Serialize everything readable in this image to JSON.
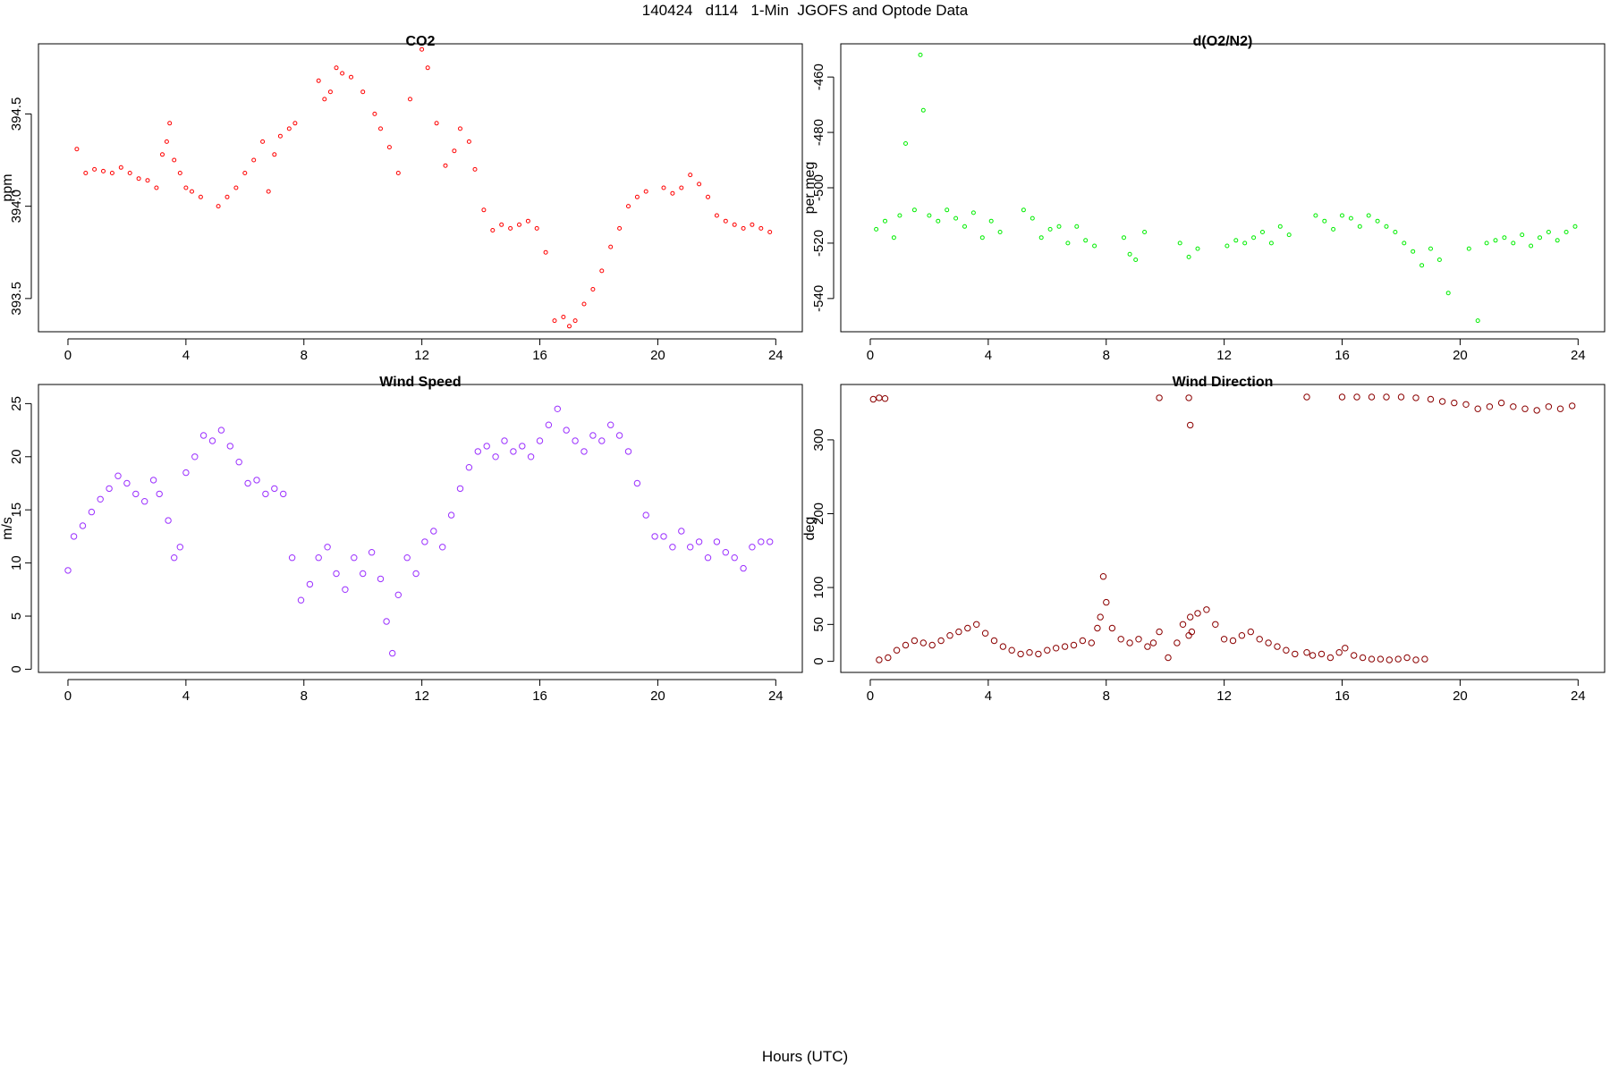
{
  "figure": {
    "title": "140424   d114   1-Min  JGOFS and Optode Data",
    "xlabel": "Hours (UTC)"
  },
  "chart_data": [
    {
      "type": "scatter",
      "title": "CO2",
      "ylabel": "ppm",
      "xlabel": "",
      "xlim": [
        -1,
        24.9
      ],
      "ylim": [
        393.32,
        394.88
      ],
      "xticks": [
        0,
        4,
        8,
        12,
        16,
        20,
        24
      ],
      "xtick_labels": [
        "0",
        "4",
        "8",
        "12",
        "16",
        "20",
        "24"
      ],
      "yticks": [
        393.5,
        394.0,
        394.5
      ],
      "ytick_labels": [
        "393.5",
        "394.0",
        "394.5"
      ],
      "color": "#ff0000",
      "marker_size": "small",
      "grid": false,
      "x": [
        0.3,
        0.6,
        0.9,
        1.2,
        1.5,
        1.8,
        2.1,
        2.4,
        2.7,
        3.0,
        3.2,
        3.35,
        3.45,
        3.6,
        3.8,
        4.0,
        4.2,
        4.5,
        5.1,
        5.4,
        5.7,
        6.0,
        6.3,
        6.6,
        6.8,
        7.0,
        7.2,
        7.5,
        7.7,
        8.5,
        8.7,
        8.9,
        9.1,
        9.3,
        9.6,
        10.0,
        10.4,
        10.6,
        10.9,
        11.2,
        11.6,
        12.0,
        12.2,
        12.5,
        12.8,
        13.1,
        13.3,
        13.6,
        13.8,
        14.1,
        14.4,
        14.7,
        15.0,
        15.3,
        15.6,
        15.9,
        16.2,
        16.5,
        16.8,
        17.0,
        17.2,
        17.5,
        17.8,
        18.1,
        18.4,
        18.7,
        19.0,
        19.3,
        19.6,
        20.2,
        20.5,
        20.8,
        21.1,
        21.4,
        21.7,
        22.0,
        22.3,
        22.6,
        22.9,
        23.2,
        23.5,
        23.8
      ],
      "y": [
        394.31,
        394.18,
        394.2,
        394.19,
        394.18,
        394.21,
        394.18,
        394.15,
        394.14,
        394.1,
        394.28,
        394.35,
        394.45,
        394.25,
        394.18,
        394.1,
        394.08,
        394.05,
        394.0,
        394.05,
        394.1,
        394.18,
        394.25,
        394.35,
        394.08,
        394.28,
        394.38,
        394.42,
        394.45,
        394.68,
        394.58,
        394.62,
        394.75,
        394.72,
        394.7,
        394.62,
        394.5,
        394.42,
        394.32,
        394.18,
        394.58,
        394.85,
        394.75,
        394.45,
        394.22,
        394.3,
        394.42,
        394.35,
        394.2,
        393.98,
        393.87,
        393.9,
        393.88,
        393.9,
        393.92,
        393.88,
        393.75,
        393.38,
        393.4,
        393.35,
        393.38,
        393.47,
        393.55,
        393.65,
        393.78,
        393.88,
        394.0,
        394.05,
        394.08,
        394.1,
        394.07,
        394.1,
        394.17,
        394.12,
        394.05,
        393.95,
        393.92,
        393.9,
        393.88,
        393.9,
        393.88,
        393.86
      ]
    },
    {
      "type": "scatter",
      "title": "d(O2/N2)",
      "ylabel": "per meg",
      "xlabel": "",
      "xlim": [
        -1,
        24.9
      ],
      "ylim": [
        -552,
        -448
      ],
      "xticks": [
        0,
        4,
        8,
        12,
        16,
        20,
        24
      ],
      "xtick_labels": [
        "0",
        "4",
        "8",
        "12",
        "16",
        "20",
        "24"
      ],
      "yticks": [
        -540,
        -520,
        -500,
        -480,
        -460
      ],
      "ytick_labels": [
        "-540",
        "-520",
        "-500",
        "-480",
        "-460"
      ],
      "color": "#00ee00",
      "marker_size": "small",
      "grid": false,
      "x": [
        0.2,
        0.5,
        0.8,
        1.0,
        1.2,
        1.5,
        1.7,
        1.8,
        2.0,
        2.3,
        2.6,
        2.9,
        3.2,
        3.5,
        3.8,
        4.1,
        4.4,
        5.2,
        5.5,
        5.8,
        6.1,
        6.4,
        6.7,
        7.0,
        7.3,
        7.6,
        8.6,
        8.8,
        9.0,
        9.3,
        10.5,
        10.8,
        11.1,
        12.1,
        12.4,
        12.7,
        13.0,
        13.3,
        13.6,
        13.9,
        14.2,
        15.1,
        15.4,
        15.7,
        16.0,
        16.3,
        16.6,
        16.9,
        17.2,
        17.5,
        17.8,
        18.1,
        18.4,
        18.7,
        19.0,
        19.3,
        19.6,
        20.3,
        20.6,
        20.9,
        21.2,
        21.5,
        21.8,
        22.1,
        22.4,
        22.7,
        23.0,
        23.3,
        23.6,
        23.9
      ],
      "y": [
        -515,
        -512,
        -518,
        -510,
        -484,
        -508,
        -452,
        -472,
        -510,
        -512,
        -508,
        -511,
        -514,
        -509,
        -518,
        -512,
        -516,
        -508,
        -511,
        -518,
        -515,
        -514,
        -520,
        -514,
        -519,
        -521,
        -518,
        -524,
        -526,
        -516,
        -520,
        -525,
        -522,
        -521,
        -519,
        -520,
        -518,
        -516,
        -520,
        -514,
        -517,
        -510,
        -512,
        -515,
        -510,
        -511,
        -514,
        -510,
        -512,
        -514,
        -516,
        -520,
        -523,
        -528,
        -522,
        -526,
        -538,
        -522,
        -548,
        -520,
        -519,
        -518,
        -520,
        -517,
        -521,
        -518,
        -516,
        -519,
        -516,
        -514
      ]
    },
    {
      "type": "scatter",
      "title": "Wind Speed",
      "ylabel": "m/s",
      "xlabel": "",
      "xlim": [
        -1,
        24.9
      ],
      "ylim": [
        -0.3,
        26.8
      ],
      "xticks": [
        0,
        4,
        8,
        12,
        16,
        20,
        24
      ],
      "xtick_labels": [
        "0",
        "4",
        "8",
        "12",
        "16",
        "20",
        "24"
      ],
      "yticks": [
        0,
        5,
        10,
        15,
        20,
        25
      ],
      "ytick_labels": [
        "0",
        "5",
        "10",
        "15",
        "20",
        "25"
      ],
      "color": "#9b30ff",
      "marker_size": "large",
      "grid": false,
      "x": [
        0.0,
        0.2,
        0.5,
        0.8,
        1.1,
        1.4,
        1.7,
        2.0,
        2.3,
        2.6,
        2.9,
        3.1,
        3.4,
        3.6,
        3.8,
        4.0,
        4.3,
        4.6,
        4.9,
        5.2,
        5.5,
        5.8,
        6.1,
        6.4,
        6.7,
        7.0,
        7.3,
        7.6,
        7.9,
        8.2,
        8.5,
        8.8,
        9.1,
        9.4,
        9.7,
        10.0,
        10.3,
        10.6,
        10.8,
        11.0,
        11.2,
        11.5,
        11.8,
        12.1,
        12.4,
        12.7,
        13.0,
        13.3,
        13.6,
        13.9,
        14.2,
        14.5,
        14.8,
        15.1,
        15.4,
        15.7,
        16.0,
        16.3,
        16.6,
        16.9,
        17.2,
        17.5,
        17.8,
        18.1,
        18.4,
        18.7,
        19.0,
        19.3,
        19.6,
        19.9,
        20.2,
        20.5,
        20.8,
        21.1,
        21.4,
        21.7,
        22.0,
        22.3,
        22.6,
        22.9,
        23.2,
        23.5,
        23.8
      ],
      "y": [
        9.3,
        12.5,
        13.5,
        14.8,
        16.0,
        17.0,
        18.2,
        17.5,
        16.5,
        15.8,
        17.8,
        16.5,
        14.0,
        10.5,
        11.5,
        18.5,
        20.0,
        22.0,
        21.5,
        22.5,
        21.0,
        19.5,
        17.5,
        17.8,
        16.5,
        17.0,
        16.5,
        10.5,
        6.5,
        8.0,
        10.5,
        11.5,
        9.0,
        7.5,
        10.5,
        9.0,
        11.0,
        8.5,
        4.5,
        1.5,
        7.0,
        10.5,
        9.0,
        12.0,
        13.0,
        11.5,
        14.5,
        17.0,
        19.0,
        20.5,
        21.0,
        20.0,
        21.5,
        20.5,
        21.0,
        20.0,
        21.5,
        23.0,
        24.5,
        22.5,
        21.5,
        20.5,
        22.0,
        21.5,
        23.0,
        22.0,
        20.5,
        17.5,
        14.5,
        12.5,
        12.5,
        11.5,
        13.0,
        11.5,
        12.0,
        10.5,
        12.0,
        11.0,
        10.5,
        9.5,
        11.5,
        12.0,
        12.0
      ]
    },
    {
      "type": "scatter",
      "title": "Wind Direction",
      "ylabel": "deg",
      "xlabel": "",
      "xlim": [
        -1,
        24.9
      ],
      "ylim": [
        -15,
        375
      ],
      "xticks": [
        0,
        4,
        8,
        12,
        16,
        20,
        24
      ],
      "xtick_labels": [
        "0",
        "4",
        "8",
        "12",
        "16",
        "20",
        "24"
      ],
      "yticks": [
        0,
        50,
        100,
        200,
        300
      ],
      "ytick_labels": [
        "0",
        "50",
        "100",
        "200",
        "300"
      ],
      "color": "#8b0000",
      "marker_size": "large",
      "grid": false,
      "x": [
        0.1,
        0.3,
        0.5,
        0.3,
        0.6,
        0.9,
        1.2,
        1.5,
        1.8,
        2.1,
        2.4,
        2.7,
        3.0,
        3.3,
        3.6,
        3.9,
        4.2,
        4.5,
        4.8,
        5.1,
        5.4,
        5.7,
        6.0,
        6.3,
        6.6,
        6.9,
        7.2,
        7.5,
        7.7,
        7.8,
        7.9,
        8.0,
        8.2,
        8.5,
        8.8,
        9.1,
        9.4,
        9.6,
        9.8,
        10.1,
        10.4,
        10.6,
        10.8,
        10.85,
        10.9,
        11.1,
        11.4,
        11.7,
        12.0,
        12.3,
        12.6,
        12.9,
        13.2,
        13.5,
        13.8,
        14.1,
        14.4,
        14.8,
        15.0,
        15.3,
        15.6,
        15.9,
        16.1,
        16.4,
        16.7,
        17.0,
        17.3,
        17.6,
        17.9,
        18.2,
        18.5,
        18.8,
        9.8,
        10.8,
        10.85,
        14.8,
        16.0,
        16.5,
        17.0,
        17.5,
        18.0,
        18.5,
        19.0,
        19.4,
        19.8,
        20.2,
        20.6,
        21.0,
        21.4,
        21.8,
        22.2,
        22.6,
        23.0,
        23.4,
        23.8
      ],
      "y": [
        355,
        357,
        356,
        2,
        5,
        15,
        22,
        28,
        25,
        22,
        28,
        35,
        40,
        45,
        50,
        38,
        28,
        20,
        15,
        10,
        12,
        10,
        15,
        18,
        20,
        22,
        28,
        25,
        45,
        60,
        115,
        80,
        45,
        30,
        25,
        30,
        20,
        25,
        40,
        5,
        25,
        50,
        35,
        60,
        40,
        65,
        70,
        50,
        30,
        28,
        35,
        40,
        30,
        25,
        20,
        15,
        10,
        12,
        8,
        10,
        5,
        12,
        18,
        8,
        5,
        3,
        3,
        2,
        3,
        5,
        2,
        3,
        357,
        357,
        320,
        358,
        358,
        358,
        358,
        358,
        358,
        357,
        355,
        352,
        350,
        348,
        342,
        345,
        350,
        345,
        342,
        340,
        345,
        342,
        346
      ]
    }
  ]
}
